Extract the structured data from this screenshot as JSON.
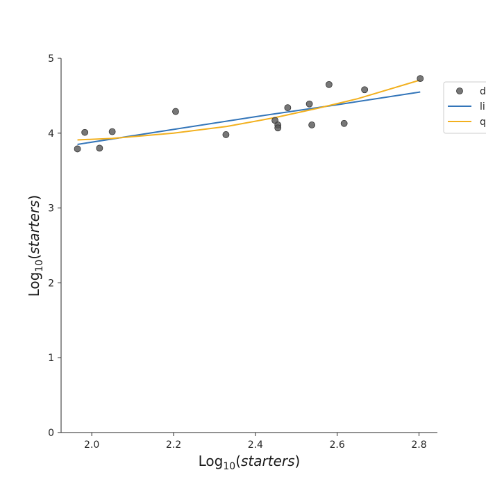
{
  "chart_data": {
    "type": "scatter",
    "xlabel": {
      "prefix": "Log",
      "sub": "10",
      "open": "(",
      "var": "starters",
      "close": ")"
    },
    "ylabel": {
      "prefix": "Log",
      "sub": "10",
      "open": "(",
      "var": "starters",
      "close": ")"
    },
    "xlim": [
      1.925,
      2.845
    ],
    "ylim": [
      0,
      5
    ],
    "xticks": [
      "2.0",
      "2.2",
      "2.4",
      "2.6",
      "2.8"
    ],
    "xtick_values": [
      2.0,
      2.2,
      2.4,
      2.6,
      2.8
    ],
    "yticks": [
      "0",
      "1",
      "2",
      "3",
      "4",
      "5"
    ],
    "ytick_values": [
      0,
      1,
      2,
      3,
      4,
      5
    ],
    "grid": false,
    "legend_position": "right, partially cut off",
    "series": [
      {
        "name": "d",
        "kind": "scatter",
        "color": "#555555",
        "x": [
          1.965,
          1.983,
          2.019,
          2.05,
          2.205,
          2.328,
          2.448,
          2.455,
          2.455,
          2.479,
          2.532,
          2.538,
          2.58,
          2.617,
          2.667,
          2.803
        ],
        "y": [
          3.79,
          4.01,
          3.8,
          4.02,
          4.29,
          3.98,
          4.17,
          4.11,
          4.07,
          4.34,
          4.39,
          4.11,
          4.65,
          4.13,
          4.58,
          4.73
        ]
      },
      {
        "name": "li",
        "kind": "line",
        "color": "#3375b9",
        "x": [
          1.965,
          2.2,
          2.4,
          2.6,
          2.803
        ],
        "y": [
          3.85,
          4.05,
          4.22,
          4.38,
          4.55
        ]
      },
      {
        "name": "q",
        "kind": "line",
        "color": "#f2b01e",
        "x": [
          1.965,
          2.05,
          2.2,
          2.33,
          2.45,
          2.55,
          2.65,
          2.803
        ],
        "y": [
          3.91,
          3.93,
          4.0,
          4.09,
          4.21,
          4.33,
          4.46,
          4.71
        ]
      }
    ]
  }
}
